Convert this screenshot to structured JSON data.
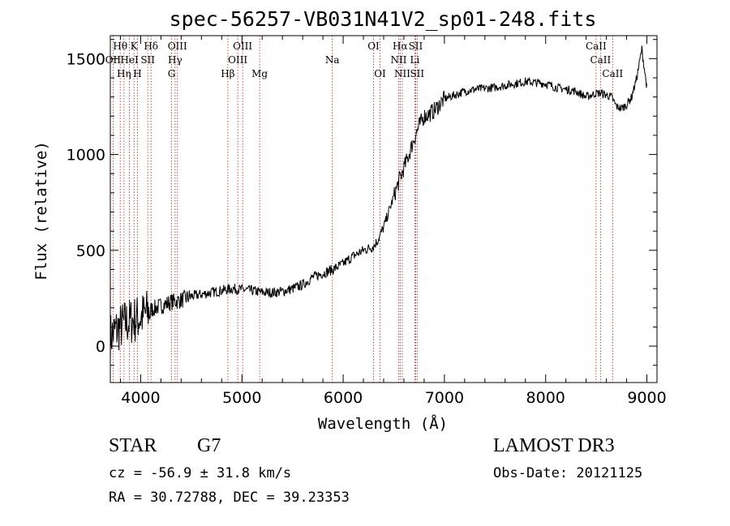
{
  "chart_data": {
    "type": "line",
    "title": "spec-56257-VB031N41V2_sp01-248.fits",
    "xlabel": "Wavelength (Å)",
    "ylabel": "Flux (relative)",
    "xlim": [
      3700,
      9100
    ],
    "ylim": [
      -190,
      1620
    ],
    "xticks": [
      4000,
      5000,
      6000,
      7000,
      8000,
      9000
    ],
    "yticks": [
      0,
      500,
      1000,
      1500
    ],
    "series": [
      {
        "name": "flux",
        "x": [
          3700,
          3750,
          3800,
          3850,
          3900,
          3950,
          4000,
          4050,
          4100,
          4200,
          4300,
          4400,
          4500,
          4600,
          4700,
          4800,
          4900,
          5000,
          5100,
          5200,
          5300,
          5400,
          5500,
          5600,
          5700,
          5800,
          5900,
          6000,
          6100,
          6200,
          6300,
          6350,
          6400,
          6450,
          6500,
          6550,
          6600,
          6650,
          6700,
          6750,
          6800,
          6850,
          6900,
          6950,
          7000,
          7100,
          7200,
          7300,
          7400,
          7500,
          7600,
          7700,
          7800,
          7900,
          8000,
          8100,
          8200,
          8300,
          8400,
          8450,
          8500,
          8550,
          8600,
          8650,
          8700,
          8750,
          8800,
          8850,
          8900,
          8950,
          9000
        ],
        "y": [
          50,
          80,
          100,
          120,
          130,
          140,
          150,
          170,
          190,
          210,
          230,
          240,
          260,
          270,
          280,
          290,
          300,
          295,
          290,
          280,
          280,
          285,
          300,
          320,
          360,
          380,
          400,
          430,
          470,
          500,
          520,
          560,
          620,
          700,
          780,
          860,
          930,
          1000,
          1080,
          1150,
          1200,
          1210,
          1230,
          1260,
          1290,
          1310,
          1330,
          1340,
          1345,
          1350,
          1360,
          1370,
          1380,
          1375,
          1370,
          1350,
          1340,
          1330,
          1300,
          1310,
          1320,
          1320,
          1310,
          1300,
          1250,
          1240,
          1260,
          1300,
          1400,
          1550,
          1350
        ]
      }
    ],
    "spectral_lines": [
      {
        "label": "Hθ",
        "x": 3798
      },
      {
        "label": "K",
        "x": 3934
      },
      {
        "label": "Hδ",
        "x": 4102
      },
      {
        "label": "OIII",
        "x": 4363
      },
      {
        "label": "OIII",
        "x": 5007
      },
      {
        "label": "OI",
        "x": 6300
      },
      {
        "label": "Hα",
        "x": 6563
      },
      {
        "label": "SII",
        "x": 6716
      },
      {
        "label": "CaII",
        "x": 8498
      },
      {
        "label": "HeI",
        "x": 3889
      },
      {
        "label": "SII",
        "x": 4070
      },
      {
        "label": "Hγ",
        "x": 4340
      },
      {
        "label": "OIII",
        "x": 4959
      },
      {
        "label": "Na",
        "x": 5893
      },
      {
        "label": "NII",
        "x": 6548
      },
      {
        "label": "Li",
        "x": 6708
      },
      {
        "label": "CaII",
        "x": 8542
      },
      {
        "label": "OII",
        "x": 3727
      },
      {
        "label": "Hη",
        "x": 3835
      },
      {
        "label": "H",
        "x": 3968
      },
      {
        "label": "G",
        "x": 4305
      },
      {
        "label": "Hβ",
        "x": 4861
      },
      {
        "label": "Mg",
        "x": 5175
      },
      {
        "label": "OI",
        "x": 6364
      },
      {
        "label": "NII",
        "x": 6584
      },
      {
        "label": "SII",
        "x": 6731
      },
      {
        "label": "CaII",
        "x": 8662
      }
    ]
  },
  "info": {
    "class": "STAR",
    "subclass": "G7",
    "survey": "LAMOST DR3",
    "cz": "cz = -56.9 ± 31.8 km/s",
    "obs_date": "Obs-Date: 20121125",
    "radec": "RA =  30.72788, DEC =  39.23353"
  }
}
